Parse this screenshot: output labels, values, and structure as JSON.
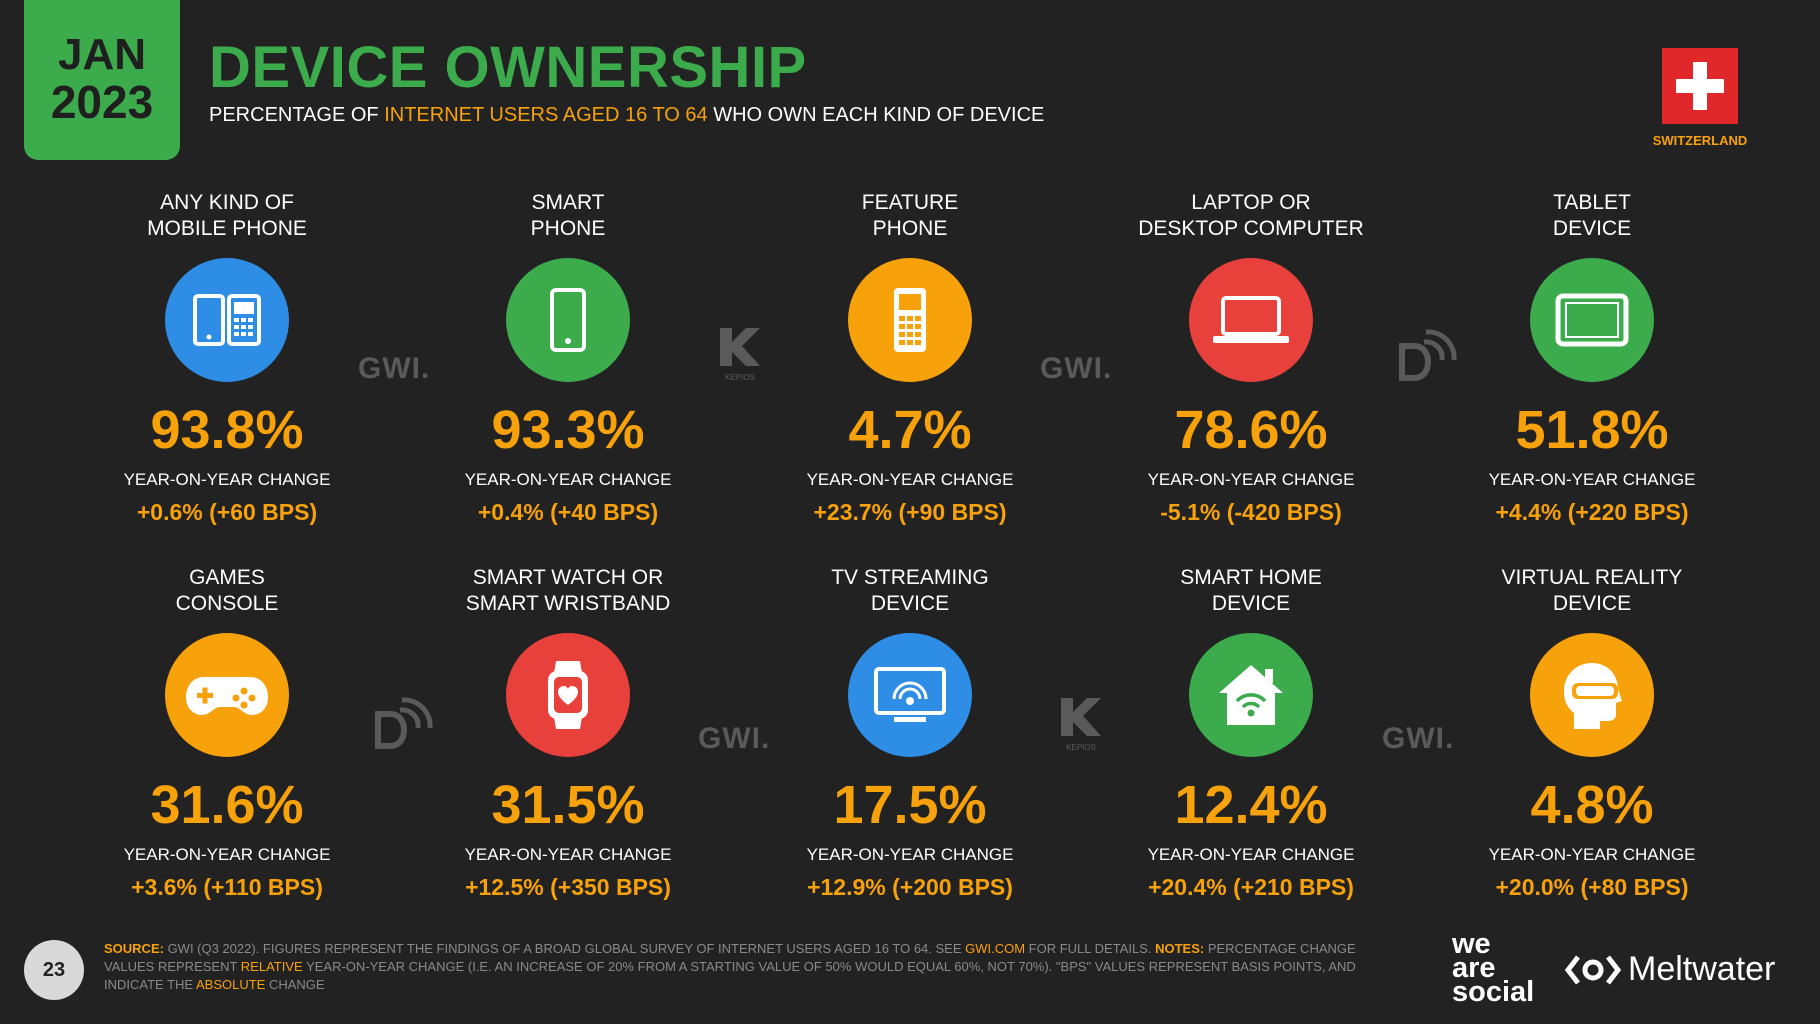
{
  "header": {
    "date_month": "JAN",
    "date_year": "2023",
    "title": "DEVICE OWNERSHIP",
    "subtitle_pre": "PERCENTAGE OF ",
    "subtitle_highlight": "INTERNET USERS AGED 16 TO 64",
    "subtitle_post": " WHO OWN EACH KIND OF DEVICE",
    "country": "SWITZERLAND"
  },
  "colors": {
    "green": "#3cab4b",
    "orange": "#f7a10b",
    "blue": "#2e8ee6",
    "red": "#e8403a",
    "background": "#222222"
  },
  "devices": [
    {
      "label": "ANY KIND OF\nMOBILE PHONE",
      "icon": "mobile-phones-icon",
      "icon_color": "#2e8ee6",
      "value": "93.8%",
      "yoy_label": "YEAR-ON-YEAR CHANGE",
      "yoy": "+0.6% (+60 BPS)"
    },
    {
      "label": "SMART\nPHONE",
      "icon": "smartphone-icon",
      "icon_color": "#3cab4b",
      "value": "93.3%",
      "yoy_label": "YEAR-ON-YEAR CHANGE",
      "yoy": "+0.4% (+40 BPS)"
    },
    {
      "label": "FEATURE\nPHONE",
      "icon": "feature-phone-icon",
      "icon_color": "#f7a10b",
      "value": "4.7%",
      "yoy_label": "YEAR-ON-YEAR CHANGE",
      "yoy": "+23.7% (+90 BPS)"
    },
    {
      "label": "LAPTOP OR\nDESKTOP COMPUTER",
      "icon": "laptop-icon",
      "icon_color": "#e8403a",
      "value": "78.6%",
      "yoy_label": "YEAR-ON-YEAR CHANGE",
      "yoy": "-5.1% (-420 BPS)"
    },
    {
      "label": "TABLET\nDEVICE",
      "icon": "tablet-icon",
      "icon_color": "#3cab4b",
      "value": "51.8%",
      "yoy_label": "YEAR-ON-YEAR CHANGE",
      "yoy": "+4.4% (+220 BPS)"
    },
    {
      "label": "GAMES\nCONSOLE",
      "icon": "game-controller-icon",
      "icon_color": "#f7a10b",
      "value": "31.6%",
      "yoy_label": "YEAR-ON-YEAR CHANGE",
      "yoy": "+3.6% (+110 BPS)"
    },
    {
      "label": "SMART WATCH OR\nSMART WRISTBAND",
      "icon": "smartwatch-icon",
      "icon_color": "#e8403a",
      "value": "31.5%",
      "yoy_label": "YEAR-ON-YEAR CHANGE",
      "yoy": "+12.5% (+350 BPS)"
    },
    {
      "label": "TV STREAMING\nDEVICE",
      "icon": "tv-streaming-icon",
      "icon_color": "#2e8ee6",
      "value": "17.5%",
      "yoy_label": "YEAR-ON-YEAR CHANGE",
      "yoy": "+12.9% (+200 BPS)"
    },
    {
      "label": "SMART HOME\nDEVICE",
      "icon": "smart-home-icon",
      "icon_color": "#3cab4b",
      "value": "12.4%",
      "yoy_label": "YEAR-ON-YEAR CHANGE",
      "yoy": "+20.4% (+210 BPS)"
    },
    {
      "label": "VIRTUAL REALITY\nDEVICE",
      "icon": "vr-headset-icon",
      "icon_color": "#f7a10b",
      "value": "4.8%",
      "yoy_label": "YEAR-ON-YEAR CHANGE",
      "yoy": "+20.0% (+80 BPS)"
    }
  ],
  "watermarks": {
    "gwi": "GWI.",
    "kepios": "KEPIOS"
  },
  "footer": {
    "page_number": "23",
    "source_label": "SOURCE:",
    "source_text": " GWI (Q3 2022). FIGURES REPRESENT THE FINDINGS OF A BROAD GLOBAL SURVEY OF INTERNET USERS AGED 16 TO 64. SEE ",
    "source_link": "GWI.COM",
    "source_after": " FOR FULL DETAILS. ",
    "notes_label": "NOTES:",
    "notes_text1": " PERCENTAGE CHANGE VALUES REPRESENT ",
    "notes_relative": "RELATIVE",
    "notes_text2": " YEAR-ON-YEAR CHANGE (I.E. AN INCREASE OF 20% FROM A STARTING VALUE OF 50% WOULD EQUAL 60%, NOT 70%). \"BPS\" VALUES REPRESENT BASIS POINTS, AND INDICATE THE ",
    "notes_absolute": "ABSOLUTE",
    "notes_text3": " CHANGE",
    "brand1_line1": "we",
    "brand1_line2": "are",
    "brand1_line3": "social",
    "brand2": "Meltwater"
  }
}
